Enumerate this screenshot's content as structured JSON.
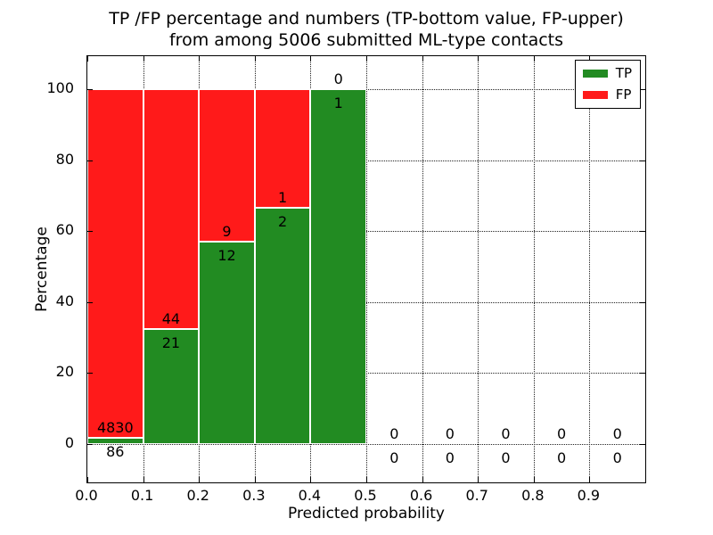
{
  "chart_data": {
    "type": "bar",
    "stacked": true,
    "title": "TP /FP percentage and numbers (TP-bottom value, FP-upper)\nfrom among 5006 submitted ML-type contacts",
    "title_line1": "TP /FP percentage and numbers (TP-bottom value, FP-upper)",
    "title_line2": "from among 5006 submitted ML-type contacts",
    "xlabel": "Predicted probability",
    "ylabel": "Percentage",
    "total_contacts": 5006,
    "bin_edges": [
      0.0,
      0.1,
      0.2,
      0.3,
      0.4,
      0.5,
      0.6,
      0.7,
      0.8,
      0.9,
      1.0
    ],
    "categories": [
      "0.0-0.1",
      "0.1-0.2",
      "0.2-0.3",
      "0.3-0.4",
      "0.4-0.5",
      "0.5-0.6",
      "0.6-0.7",
      "0.7-0.8",
      "0.8-0.9",
      "0.9-1.0"
    ],
    "series": [
      {
        "name": "TP",
        "color": "#228b22",
        "counts": [
          86,
          21,
          12,
          2,
          1,
          0,
          0,
          0,
          0,
          0
        ],
        "percentages": [
          1.75,
          32.31,
          57.14,
          66.67,
          100,
          0,
          0,
          0,
          0,
          0
        ]
      },
      {
        "name": "FP",
        "color": "#ff1a1a",
        "counts": [
          4830,
          44,
          9,
          1,
          0,
          0,
          0,
          0,
          0,
          0
        ],
        "percentages": [
          98.25,
          67.69,
          42.86,
          33.33,
          0,
          0,
          0,
          0,
          0,
          0
        ]
      }
    ],
    "x_tick_labels": [
      "0.0",
      "0.1",
      "0.2",
      "0.3",
      "0.4",
      "0.5",
      "0.6",
      "0.7",
      "0.8",
      "0.9"
    ],
    "y_tick_values": [
      0,
      20,
      40,
      60,
      80,
      100
    ],
    "xlim": [
      0.0,
      1.0
    ],
    "ylim": [
      -10.8,
      109.3
    ],
    "grid": "dotted",
    "grid_color": "#000000",
    "bar_edge_color": "#ffffff",
    "legend": {
      "position": "upper right",
      "labels": [
        "TP",
        "FP"
      ]
    }
  }
}
